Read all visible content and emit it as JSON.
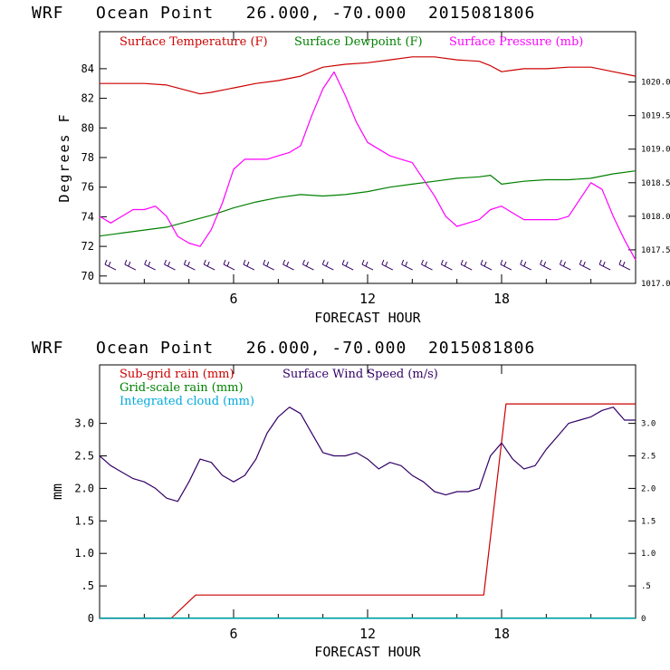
{
  "chart_data": [
    {
      "type": "line",
      "title": "WRF   Ocean Point   26.000, -70.000  2015081806",
      "xlabel": "FORECAST HOUR",
      "ylabel": "Degrees F",
      "xlim": [
        0,
        24
      ],
      "ylim": [
        69.5,
        86.5
      ],
      "y2lim": [
        1017.0,
        1020.75
      ],
      "x_ticks": [
        "6",
        "12",
        "18"
      ],
      "y_ticks": [
        "70",
        "72",
        "74",
        "76",
        "78",
        "80",
        "82",
        "84"
      ],
      "y2_ticks": [
        "1017.0",
        "1017.5",
        "1018.0",
        "1018.5",
        "1019.0",
        "1019.5",
        "1020.0"
      ],
      "series": [
        {
          "name": "Surface Temperature (F)",
          "color": "#cc0000",
          "axis": "left",
          "x": [
            0,
            1,
            2,
            3,
            4,
            4.5,
            5,
            6,
            7,
            8,
            9,
            10,
            11,
            12,
            13,
            14,
            15,
            16,
            17,
            17.5,
            18,
            18.5,
            19,
            20,
            21,
            22,
            23,
            24
          ],
          "y": [
            83.0,
            83.0,
            83.0,
            82.9,
            82.5,
            82.3,
            82.4,
            82.7,
            83.0,
            83.2,
            83.5,
            84.1,
            84.3,
            84.4,
            84.6,
            84.8,
            84.8,
            84.6,
            84.5,
            84.2,
            83.8,
            83.9,
            84.0,
            84.0,
            84.1,
            84.1,
            83.8,
            83.5
          ]
        },
        {
          "name": "Surface Dewpoint (F)",
          "color": "#008000",
          "axis": "left",
          "x": [
            0,
            1,
            2,
            3,
            4,
            5,
            6,
            7,
            8,
            9,
            10,
            11,
            12,
            13,
            14,
            15,
            16,
            17,
            17.5,
            18,
            19,
            20,
            21,
            22,
            23,
            24
          ],
          "y": [
            72.7,
            72.9,
            73.1,
            73.3,
            73.7,
            74.1,
            74.6,
            75.0,
            75.3,
            75.5,
            75.4,
            75.5,
            75.7,
            76.0,
            76.2,
            76.4,
            76.6,
            76.7,
            76.8,
            76.2,
            76.4,
            76.5,
            76.5,
            76.6,
            76.9,
            77.1
          ]
        },
        {
          "name": "Surface Pressure (mb)",
          "color": "#ff00ff",
          "axis": "right",
          "x": [
            0,
            0.5,
            1,
            1.5,
            2,
            2.5,
            3,
            3.5,
            4,
            4.5,
            5,
            5.5,
            6,
            6.5,
            7,
            7.5,
            8,
            8.5,
            9,
            9.5,
            10,
            10.5,
            11,
            11.5,
            12,
            12.5,
            13,
            13.5,
            14,
            14.5,
            15,
            15.5,
            16,
            16.5,
            17,
            17.5,
            18,
            18.5,
            19,
            19.5,
            20,
            20.5,
            21,
            21.5,
            22,
            22.5,
            23,
            23.5,
            24
          ],
          "y": [
            1018.0,
            1017.9,
            1018.0,
            1018.1,
            1018.1,
            1018.15,
            1018.0,
            1017.7,
            1017.6,
            1017.55,
            1017.8,
            1018.2,
            1018.7,
            1018.85,
            1018.85,
            1018.85,
            1018.9,
            1018.95,
            1019.05,
            1019.5,
            1019.9,
            1020.15,
            1019.8,
            1019.4,
            1019.1,
            1019.0,
            1018.9,
            1018.85,
            1018.8,
            1018.55,
            1018.3,
            1018.0,
            1017.85,
            1017.9,
            1017.95,
            1018.1,
            1018.15,
            1018.05,
            1017.95,
            1017.95,
            1017.95,
            1017.95,
            1018.0,
            1018.25,
            1018.5,
            1018.4,
            1018.0,
            1017.65,
            1017.35
          ]
        }
      ],
      "wind_barbs": {
        "count": 27,
        "y": 70.6
      }
    },
    {
      "type": "line",
      "title": "WRF   Ocean Point   26.000, -70.000  2015081806",
      "xlabel": "FORECAST HOUR",
      "ylabel": "mm",
      "xlim": [
        0,
        24
      ],
      "ylim": [
        0,
        3.9
      ],
      "y2lim": [
        0,
        3.9
      ],
      "x_ticks": [
        "6",
        "12",
        "18"
      ],
      "y_ticks": [
        "0",
        ".5",
        "1.0",
        "1.5",
        "2.0",
        "2.5",
        "3.0"
      ],
      "y_tick_values": [
        0,
        0.5,
        1.0,
        1.5,
        2.0,
        2.5,
        3.0
      ],
      "y2_ticks": [
        "0",
        ".5",
        "1.0",
        "1.5",
        "2.0",
        "2.5",
        "3.0"
      ],
      "series": [
        {
          "name": "Sub-grid rain (mm)",
          "color": "#cc0000",
          "axis": "left",
          "x": [
            0,
            3.2,
            4.3,
            17.2,
            18.2,
            24
          ],
          "y": [
            0,
            0,
            0.36,
            0.36,
            3.3,
            3.3
          ]
        },
        {
          "name": "Grid-scale rain (mm)",
          "color": "#008000",
          "axis": "left",
          "x": [
            0,
            24
          ],
          "y": [
            0.005,
            0.005
          ]
        },
        {
          "name": "Integrated cloud (mm)",
          "color": "#00aadd",
          "axis": "left",
          "x": [
            0,
            24
          ],
          "y": [
            0,
            0
          ]
        },
        {
          "name": "Surface Wind Speed (m/s)",
          "color": "#330066",
          "axis": "right",
          "x": [
            0,
            0.5,
            1,
            1.5,
            2,
            2.5,
            3,
            3.5,
            4,
            4.5,
            5,
            5.5,
            6,
            6.5,
            7,
            7.5,
            8,
            8.5,
            9,
            9.5,
            10,
            10.5,
            11,
            11.5,
            12,
            12.5,
            13,
            13.5,
            14,
            14.5,
            15,
            15.5,
            16,
            16.5,
            17,
            17.5,
            18,
            18.5,
            19,
            19.5,
            20,
            20.5,
            21,
            21.5,
            22,
            22.5,
            23,
            23.5,
            24
          ],
          "y": [
            2.5,
            2.35,
            2.25,
            2.15,
            2.1,
            2.0,
            1.85,
            1.8,
            2.1,
            2.45,
            2.4,
            2.2,
            2.1,
            2.2,
            2.45,
            2.85,
            3.1,
            3.25,
            3.15,
            2.85,
            2.55,
            2.5,
            2.5,
            2.55,
            2.45,
            2.3,
            2.4,
            2.35,
            2.2,
            2.1,
            1.95,
            1.9,
            1.95,
            1.95,
            2.0,
            2.5,
            2.7,
            2.45,
            2.3,
            2.35,
            2.6,
            2.8,
            3.0,
            3.05,
            3.1,
            3.2,
            3.25,
            3.05,
            3.05
          ]
        }
      ]
    }
  ]
}
